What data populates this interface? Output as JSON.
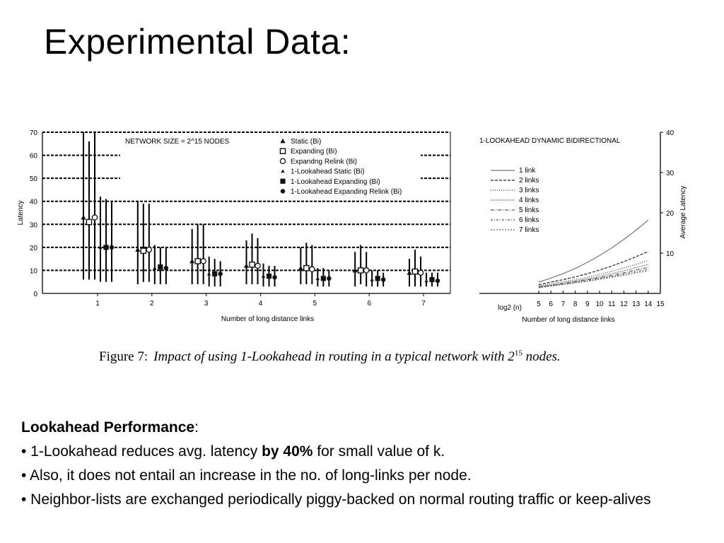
{
  "slide": {
    "title": "Experimental Data:"
  },
  "caption": {
    "label": "Figure 7:",
    "text_before": "Impact of using 1-Lookahead in routing in a typical network with 2",
    "superscript": "15",
    "text_after": " nodes."
  },
  "notes": {
    "heading": "Lookahead Performance",
    "heading_suffix": ":",
    "bullets": [
      {
        "prefix": "• 1-Lookahead reduces avg. latency ",
        "bold": "by 40%",
        "suffix": " for small value of k."
      },
      {
        "prefix": "• Also, it does not entail an increase in the no. of long-links per node.",
        "bold": "",
        "suffix": ""
      },
      {
        "prefix": "• Neighbor-lists are exchanged periodically piggy-backed on normal routing traffic or keep-alives",
        "bold": "",
        "suffix": ""
      }
    ]
  },
  "chart_data": [
    {
      "type": "scatter",
      "title": "NETWORK  SIZE  =  2^15  NODES",
      "xlabel": "Number of long distance links",
      "ylabel": "Latency",
      "categories": [
        "1",
        "2",
        "3",
        "4",
        "5",
        "6",
        "7"
      ],
      "ylim": [
        0,
        70
      ],
      "yticks": [
        0,
        10,
        20,
        30,
        40,
        50,
        60,
        70
      ],
      "grid": "dashed horizontal",
      "legend_position": "top-right",
      "series": [
        {
          "name": "Static (Bi)",
          "marker": "triangle",
          "values": [
            33,
            19,
            14,
            12,
            11,
            10,
            9
          ],
          "low": [
            6,
            4,
            4,
            4,
            4,
            3,
            3
          ],
          "high": [
            70,
            40,
            28,
            23,
            20,
            18,
            15
          ]
        },
        {
          "name": "Expanding (Bi)",
          "marker": "square-outline",
          "values": [
            31,
            18.5,
            14,
            12.5,
            11,
            10,
            9.5
          ],
          "low": [
            6,
            5,
            4,
            4,
            4,
            4,
            3
          ],
          "high": [
            66,
            39,
            30,
            26,
            22,
            21,
            19
          ]
        },
        {
          "name": "Expandng Relink (Bi)",
          "marker": "circle-outline",
          "values": [
            33,
            19,
            14,
            12,
            10.5,
            10,
            9
          ],
          "low": [
            6,
            5,
            4,
            4,
            4,
            3,
            3
          ],
          "high": [
            70,
            39,
            30,
            24,
            21,
            18,
            16
          ]
        },
        {
          "name": "1-Lookahead Static (Bi)",
          "marker": "small-triangle",
          "values": [
            20,
            11,
            8.5,
            7.5,
            6.5,
            6,
            5.5
          ],
          "low": [
            5,
            4,
            3,
            3,
            3,
            3,
            3
          ],
          "high": [
            42,
            21,
            16,
            13,
            11,
            10,
            9
          ]
        },
        {
          "name": "1-Lookahead Expanding (Bi)",
          "marker": "filled-square",
          "values": [
            20,
            11.5,
            8.5,
            7.5,
            6.5,
            6.5,
            6
          ],
          "low": [
            5,
            4,
            3,
            3,
            3,
            3,
            3
          ],
          "high": [
            41,
            20,
            15,
            12,
            11,
            10,
            9
          ]
        },
        {
          "name": "1-Lookahead Expanding Relink (Bi)",
          "marker": "filled-circle",
          "values": [
            20,
            11,
            8.5,
            7,
            6.5,
            6,
            5.5
          ],
          "low": [
            5,
            4,
            3,
            3,
            3,
            3,
            3
          ],
          "high": [
            40,
            20,
            14,
            12,
            10,
            9,
            9
          ]
        }
      ]
    },
    {
      "type": "line",
      "title": "1-LOOKAHEAD   DYNAMIC   BIDIRECTIONAL",
      "xlabel": "Number of long distance links",
      "x_prefix_label": "log2 (n)",
      "ylabel": "Average Latency",
      "x": [
        5,
        6,
        7,
        8,
        9,
        10,
        11,
        12,
        13,
        14
      ],
      "xticks": [
        5,
        6,
        7,
        8,
        9,
        10,
        11,
        12,
        13,
        14,
        15
      ],
      "yticks": [
        10,
        20,
        30,
        40
      ],
      "ylim": [
        0,
        40
      ],
      "yaxis_side": "right",
      "legend_position": "left",
      "series": [
        {
          "name": "1 link",
          "dash": "",
          "color": "#777777",
          "values": [
            2.8,
            3.8,
            4.9,
            6.2,
            7.7,
            9.4,
            11.3,
            13.4,
            15.7,
            18.2
          ]
        },
        {
          "name": "2 links",
          "dash": "4,2",
          "color": "#222222",
          "values": [
            2.2,
            2.8,
            3.4,
            4.1,
            4.9,
            5.8,
            6.8,
            7.9,
            9.1,
            10.4
          ]
        },
        {
          "name": "3 links",
          "dash": "1,2",
          "color": "#333333",
          "values": [
            1.9,
            2.4,
            2.9,
            3.4,
            4.0,
            4.7,
            5.5,
            6.3,
            7.2,
            8.2
          ]
        },
        {
          "name": "4 links",
          "dash": "1,1.5",
          "color": "#333333",
          "values": [
            1.7,
            2.1,
            2.6,
            3.1,
            3.6,
            4.2,
            4.9,
            5.6,
            6.4,
            7.2
          ]
        },
        {
          "name": "5 links",
          "dash": "5,2,1,2",
          "color": "#555555",
          "values": [
            1.6,
            2.0,
            2.4,
            2.9,
            3.4,
            3.9,
            4.5,
            5.1,
            5.8,
            6.5
          ]
        },
        {
          "name": "6 links",
          "dash": "3,2,1,2",
          "color": "#555555",
          "values": [
            1.5,
            1.9,
            2.3,
            2.7,
            3.2,
            3.7,
            4.2,
            4.8,
            5.4,
            6.0
          ]
        },
        {
          "name": "7 links",
          "dash": "2,2",
          "color": "#666666",
          "values": [
            1.4,
            1.8,
            2.2,
            2.6,
            3.0,
            3.5,
            4.0,
            4.5,
            5.1,
            5.6
          ]
        }
      ]
    }
  ]
}
